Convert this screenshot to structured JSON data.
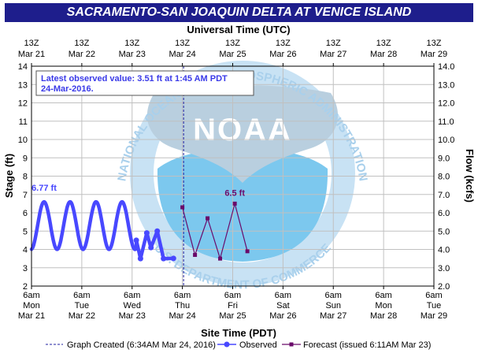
{
  "title": "SACRAMENTO-SAN JOAQUIN DELTA AT VENICE ISLAND",
  "chart_data": {
    "type": "line",
    "title": "SACRAMENTO-SAN JOAQUIN DELTA AT VENICE ISLAND",
    "top_axis_title": "Universal Time (UTC)",
    "top_ticks": [
      {
        "l1": "13Z",
        "l2": "Mar 21"
      },
      {
        "l1": "13Z",
        "l2": "Mar 22"
      },
      {
        "l1": "13Z",
        "l2": "Mar 23"
      },
      {
        "l1": "13Z",
        "l2": "Mar 24"
      },
      {
        "l1": "13Z",
        "l2": "Mar 25"
      },
      {
        "l1": "13Z",
        "l2": "Mar 26"
      },
      {
        "l1": "13Z",
        "l2": "Mar 27"
      },
      {
        "l1": "13Z",
        "l2": "Mar 28"
      },
      {
        "l1": "13Z",
        "l2": "Mar 29"
      }
    ],
    "xlabel": "Site Time (PDT)",
    "x_ticks": [
      {
        "l1": "6am",
        "l2": "Mon",
        "l3": "Mar 21"
      },
      {
        "l1": "6am",
        "l2": "Tue",
        "l3": "Mar 22"
      },
      {
        "l1": "6am",
        "l2": "Wed",
        "l3": "Mar 23"
      },
      {
        "l1": "6am",
        "l2": "Thu",
        "l3": "Mar 24"
      },
      {
        "l1": "6am",
        "l2": "Fri",
        "l3": "Mar 25"
      },
      {
        "l1": "6am",
        "l2": "Sat",
        "l3": "Mar 26"
      },
      {
        "l1": "6am",
        "l2": "Sun",
        "l3": "Mar 27"
      },
      {
        "l1": "6am",
        "l2": "Mon",
        "l3": "Mar 28"
      },
      {
        "l1": "6am",
        "l2": "Tue",
        "l3": "Mar 29"
      }
    ],
    "xlim": [
      "2016-03-21 06:00",
      "2016-03-29 06:00"
    ],
    "ylabel": "Stage (ft)",
    "ylim": [
      2,
      14
    ],
    "y_ticks": [
      "2",
      "3",
      "4",
      "5",
      "6",
      "7",
      "8",
      "9",
      "10",
      "11",
      "12",
      "13",
      "14"
    ],
    "y2label": "Flow (kcfs)",
    "y2_ticks": [
      "2.0",
      "3.0",
      "4.0",
      "5.0",
      "6.0",
      "7.0",
      "8.0",
      "9.0",
      "10.0",
      "11.0",
      "12.0",
      "13.0",
      "14.0"
    ],
    "grid": true,
    "info_box": {
      "line1": "Latest observed value: 3.51 ft at 1:45 AM PDT",
      "line2": "24-Mar-2016."
    },
    "graph_created": "2016-03-24 06:34",
    "observed": {
      "name": "Observed",
      "color": "#4848ff",
      "peak_label": "6.77 ft",
      "peak": {
        "x": "2016-03-21 12:00",
        "y": 6.77
      },
      "wave": {
        "start": "2016-03-21 06:00",
        "end": "2016-03-23 08:00",
        "cycle_hours": 12.4,
        "high": 6.6,
        "low": 4.0,
        "phase_hours": 6.0
      },
      "values": [
        {
          "x": "2016-03-23 08:00",
          "y": 4.5
        },
        {
          "x": "2016-03-23 10:00",
          "y": 3.5
        },
        {
          "x": "2016-03-23 13:00",
          "y": 4.9
        },
        {
          "x": "2016-03-23 15:00",
          "y": 4.1
        },
        {
          "x": "2016-03-23 18:00",
          "y": 5.0
        },
        {
          "x": "2016-03-23 21:00",
          "y": 3.5
        },
        {
          "x": "2016-03-24 01:45",
          "y": 3.51
        }
      ]
    },
    "forecast": {
      "name": "Forecast (issued 6:11AM Mar 23)",
      "color": "#6a0a6a",
      "peak_label": "6.5 ft",
      "peak": {
        "x": "2016-03-25 07:00",
        "y": 6.5
      },
      "values": [
        {
          "x": "2016-03-24 06:00",
          "y": 6.3
        },
        {
          "x": "2016-03-24 12:00",
          "y": 3.7
        },
        {
          "x": "2016-03-24 18:00",
          "y": 5.7
        },
        {
          "x": "2016-03-25 00:00",
          "y": 3.5
        },
        {
          "x": "2016-03-25 07:00",
          "y": 6.5
        },
        {
          "x": "2016-03-25 13:00",
          "y": 3.9
        }
      ]
    },
    "legend": {
      "graph_created": "Graph Created (6:34AM Mar 24, 2016)",
      "observed": "Observed",
      "forecast": "Forecast (issued 6:11AM Mar 23)"
    },
    "watermark": {
      "logo_text": "NOAA",
      "ring_text": "NATIONAL OCEANIC AND ATMOSPHERIC ADMINISTRATION",
      "bottom_text": "U.S. DEPARTMENT OF COMMERCE"
    }
  }
}
